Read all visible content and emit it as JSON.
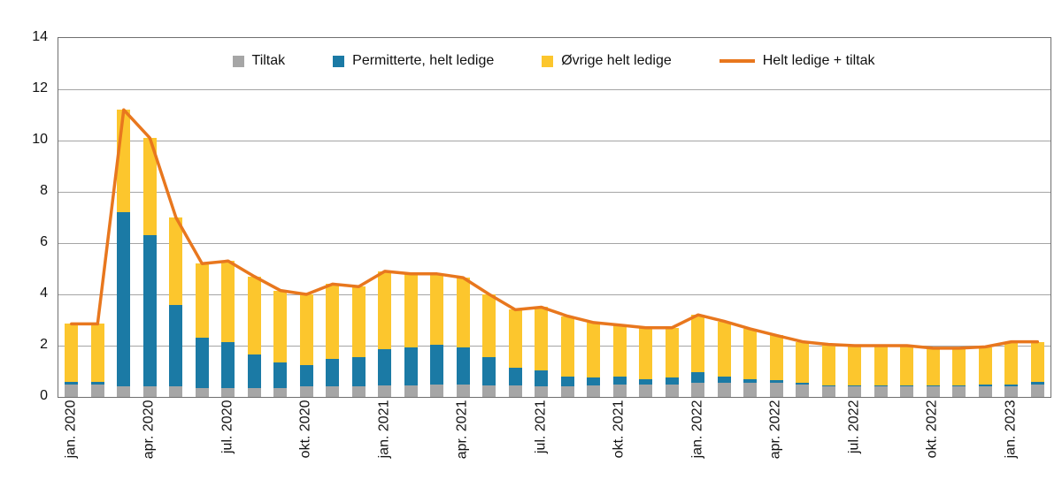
{
  "chart_data": {
    "type": "bar",
    "stacked": true,
    "title": "",
    "grid": true,
    "legend_position": "top",
    "ylim": [
      0,
      14
    ],
    "yticks": [
      0,
      2,
      4,
      6,
      8,
      10,
      12,
      14
    ],
    "x_tick_every": 3,
    "categories": [
      "jan. 2020",
      "feb. 2020",
      "mar. 2020",
      "apr. 2020",
      "mai 2020",
      "jun. 2020",
      "jul. 2020",
      "aug. 2020",
      "sep. 2020",
      "okt. 2020",
      "nov. 2020",
      "des. 2020",
      "jan. 2021",
      "feb. 2021",
      "mar. 2021",
      "apr. 2021",
      "mai 2021",
      "jun. 2021",
      "jul. 2021",
      "aug. 2021",
      "sep. 2021",
      "okt. 2021",
      "nov. 2021",
      "des. 2021",
      "jan. 2022",
      "feb. 2022",
      "mar. 2022",
      "apr. 2022",
      "mai 2022",
      "jun. 2022",
      "jul. 2022",
      "aug. 2022",
      "sep. 2022",
      "okt. 2022",
      "nov. 2022",
      "des. 2022",
      "jan. 2023",
      "feb. 2023"
    ],
    "series": [
      {
        "name": "Tiltak",
        "color": "#a6a6a6",
        "values": [
          0.5,
          0.5,
          0.4,
          0.4,
          0.4,
          0.35,
          0.35,
          0.35,
          0.35,
          0.4,
          0.4,
          0.4,
          0.45,
          0.45,
          0.5,
          0.5,
          0.45,
          0.45,
          0.4,
          0.4,
          0.45,
          0.5,
          0.5,
          0.5,
          0.55,
          0.55,
          0.55,
          0.55,
          0.5,
          0.4,
          0.4,
          0.4,
          0.4,
          0.4,
          0.4,
          0.4,
          0.4,
          0.5
        ]
      },
      {
        "name": "Permitterte, helt ledige",
        "color": "#1b7aa5",
        "values": [
          0.1,
          0.1,
          6.8,
          5.9,
          3.2,
          1.95,
          1.8,
          1.3,
          1.0,
          0.85,
          1.1,
          1.15,
          1.4,
          1.5,
          1.55,
          1.45,
          1.1,
          0.7,
          0.65,
          0.4,
          0.3,
          0.3,
          0.2,
          0.25,
          0.4,
          0.25,
          0.15,
          0.1,
          0.05,
          0.05,
          0.05,
          0.05,
          0.05,
          0.05,
          0.05,
          0.1,
          0.1,
          0.1
        ]
      },
      {
        "name": "Øvrige helt ledige",
        "color": "#fcc62d",
        "values": [
          2.25,
          2.25,
          4.0,
          3.8,
          3.4,
          2.9,
          3.15,
          3.05,
          2.8,
          2.75,
          2.9,
          2.75,
          3.05,
          2.85,
          2.75,
          2.7,
          2.45,
          2.25,
          2.45,
          2.35,
          2.15,
          2.0,
          2.0,
          1.95,
          2.25,
          2.15,
          1.95,
          1.75,
          1.6,
          1.6,
          1.55,
          1.55,
          1.55,
          1.45,
          1.45,
          1.45,
          1.65,
          1.55
        ]
      }
    ],
    "line": {
      "name": "Helt ledige + tiltak",
      "color": "#e8771e",
      "values": [
        2.85,
        2.85,
        11.2,
        10.1,
        7.0,
        5.2,
        5.3,
        4.7,
        4.15,
        4.0,
        4.4,
        4.3,
        4.9,
        4.8,
        4.8,
        4.65,
        4.0,
        3.4,
        3.5,
        3.15,
        2.9,
        2.8,
        2.7,
        2.7,
        3.2,
        2.95,
        2.65,
        2.4,
        2.15,
        2.05,
        2.0,
        2.0,
        2.0,
        1.9,
        1.9,
        1.95,
        2.15,
        2.15
      ]
    }
  }
}
